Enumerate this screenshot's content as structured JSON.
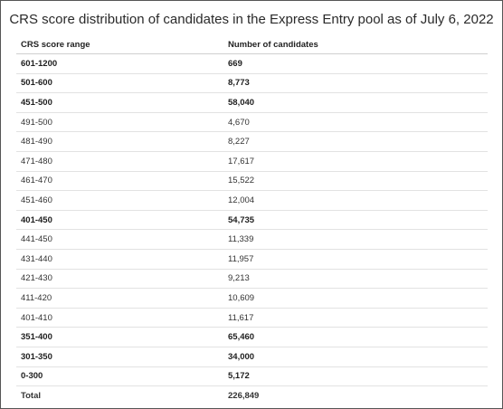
{
  "title": "CRS score distribution of candidates in the Express Entry pool as of July 6, 2022",
  "table": {
    "headers": [
      "CRS score range",
      "Number of candidates"
    ],
    "rows": [
      {
        "range": "601-1200",
        "count": "669",
        "bold": true
      },
      {
        "range": "501-600",
        "count": "8,773",
        "bold": true
      },
      {
        "range": "451-500",
        "count": "58,040",
        "bold": true
      },
      {
        "range": "491-500",
        "count": "4,670",
        "bold": false
      },
      {
        "range": "481-490",
        "count": "8,227",
        "bold": false
      },
      {
        "range": "471-480",
        "count": "17,617",
        "bold": false
      },
      {
        "range": "461-470",
        "count": "15,522",
        "bold": false
      },
      {
        "range": "451-460",
        "count": "12,004",
        "bold": false
      },
      {
        "range": "401-450",
        "count": "54,735",
        "bold": true
      },
      {
        "range": "441-450",
        "count": "11,339",
        "bold": false
      },
      {
        "range": "431-440",
        "count": "11,957",
        "bold": false
      },
      {
        "range": "421-430",
        "count": "9,213",
        "bold": false
      },
      {
        "range": "411-420",
        "count": "10,609",
        "bold": false
      },
      {
        "range": "401-410",
        "count": "11,617",
        "bold": false
      },
      {
        "range": "351-400",
        "count": "65,460",
        "bold": true
      },
      {
        "range": "301-350",
        "count": "34,000",
        "bold": true
      },
      {
        "range": "0-300",
        "count": "5,172",
        "bold": true
      }
    ],
    "total": {
      "label": "Total",
      "count": "226,849"
    }
  }
}
